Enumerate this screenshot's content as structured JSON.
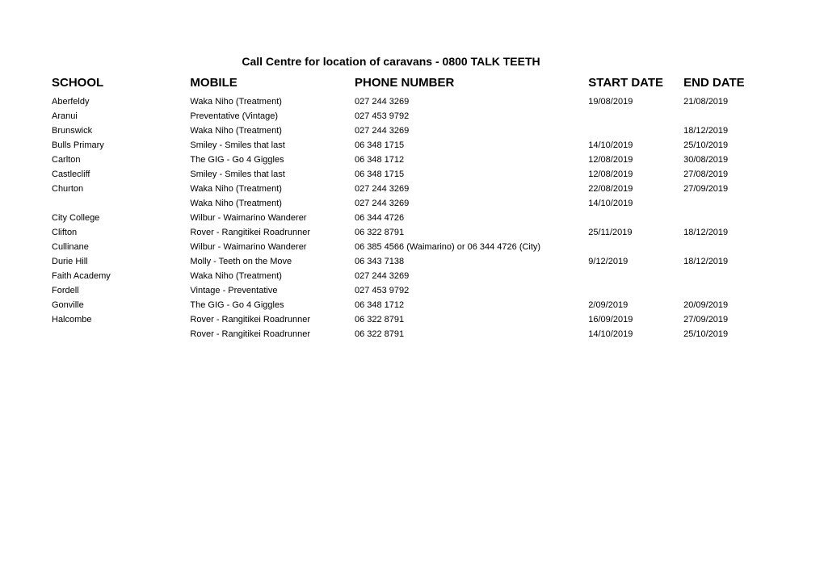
{
  "title": "Call Centre for location of caravans - 0800 TALK TEETH",
  "headers": {
    "school": "SCHOOL",
    "mobile": "MOBILE",
    "phone": "PHONE NUMBER",
    "start": "START DATE",
    "end": "END DATE"
  },
  "rows": [
    {
      "school": "Aberfeldy",
      "mobile": "Waka Niho (Treatment)",
      "phone": "027 244 3269",
      "start": "19/08/2019",
      "end": "21/08/2019"
    },
    {
      "school": "Aranui",
      "mobile": "Preventative (Vintage)",
      "phone": "027 453 9792",
      "start": "",
      "end": ""
    },
    {
      "school": "Brunswick",
      "mobile": "Waka Niho (Treatment)",
      "phone": "027 244 3269",
      "start": "",
      "end": "18/12/2019"
    },
    {
      "school": "Bulls Primary",
      "mobile": "Smiley - Smiles that last",
      "phone": "06 348 1715",
      "start": "14/10/2019",
      "end": "25/10/2019"
    },
    {
      "school": "Carlton",
      "mobile": "The GIG - Go 4 Giggles",
      "phone": "06 348 1712",
      "start": "12/08/2019",
      "end": "30/08/2019"
    },
    {
      "school": "Castlecliff",
      "mobile": "Smiley - Smiles that last",
      "phone": "06 348 1715",
      "start": "12/08/2019",
      "end": "27/08/2019"
    },
    {
      "school": "Churton",
      "mobile": "Waka Niho (Treatment)",
      "phone": "027 244 3269",
      "start": "22/08/2019",
      "end": "27/09/2019"
    },
    {
      "school": "",
      "mobile": "Waka Niho (Treatment)",
      "phone": "027 244 3269",
      "start": "14/10/2019",
      "end": ""
    },
    {
      "school": "City College",
      "mobile": "Wilbur - Waimarino Wanderer",
      "phone": "06 344 4726",
      "start": "",
      "end": ""
    },
    {
      "school": "Clifton",
      "mobile": "Rover - Rangitikei Roadrunner",
      "phone": "06 322 8791",
      "start": "25/11/2019",
      "end": "18/12/2019"
    },
    {
      "school": "Cullinane",
      "mobile": "Wilbur - Waimarino Wanderer",
      "phone": "06 385 4566 (Waimarino) or 06 344 4726 (City)",
      "start": "",
      "end": ""
    },
    {
      "school": "Durie Hill",
      "mobile": "Molly - Teeth on the Move",
      "phone": "06 343 7138",
      "start": "9/12/2019",
      "end": "18/12/2019"
    },
    {
      "school": "Faith Academy",
      "mobile": "Waka Niho (Treatment)",
      "phone": "027 244 3269",
      "start": "",
      "end": ""
    },
    {
      "school": "Fordell",
      "mobile": "Vintage - Preventative",
      "phone": "027 453 9792",
      "start": "",
      "end": ""
    },
    {
      "school": "Gonville",
      "mobile": "The GIG - Go 4 Giggles",
      "phone": "06 348 1712",
      "start": "2/09/2019",
      "end": "20/09/2019"
    },
    {
      "school": "Halcombe",
      "mobile": "Rover - Rangitikei Roadrunner",
      "phone": "06 322 8791",
      "start": "16/09/2019",
      "end": "27/09/2019"
    },
    {
      "school": "",
      "mobile": "Rover - Rangitikei Roadrunner",
      "phone": "06 322 8791",
      "start": "14/10/2019",
      "end": "25/10/2019"
    }
  ]
}
